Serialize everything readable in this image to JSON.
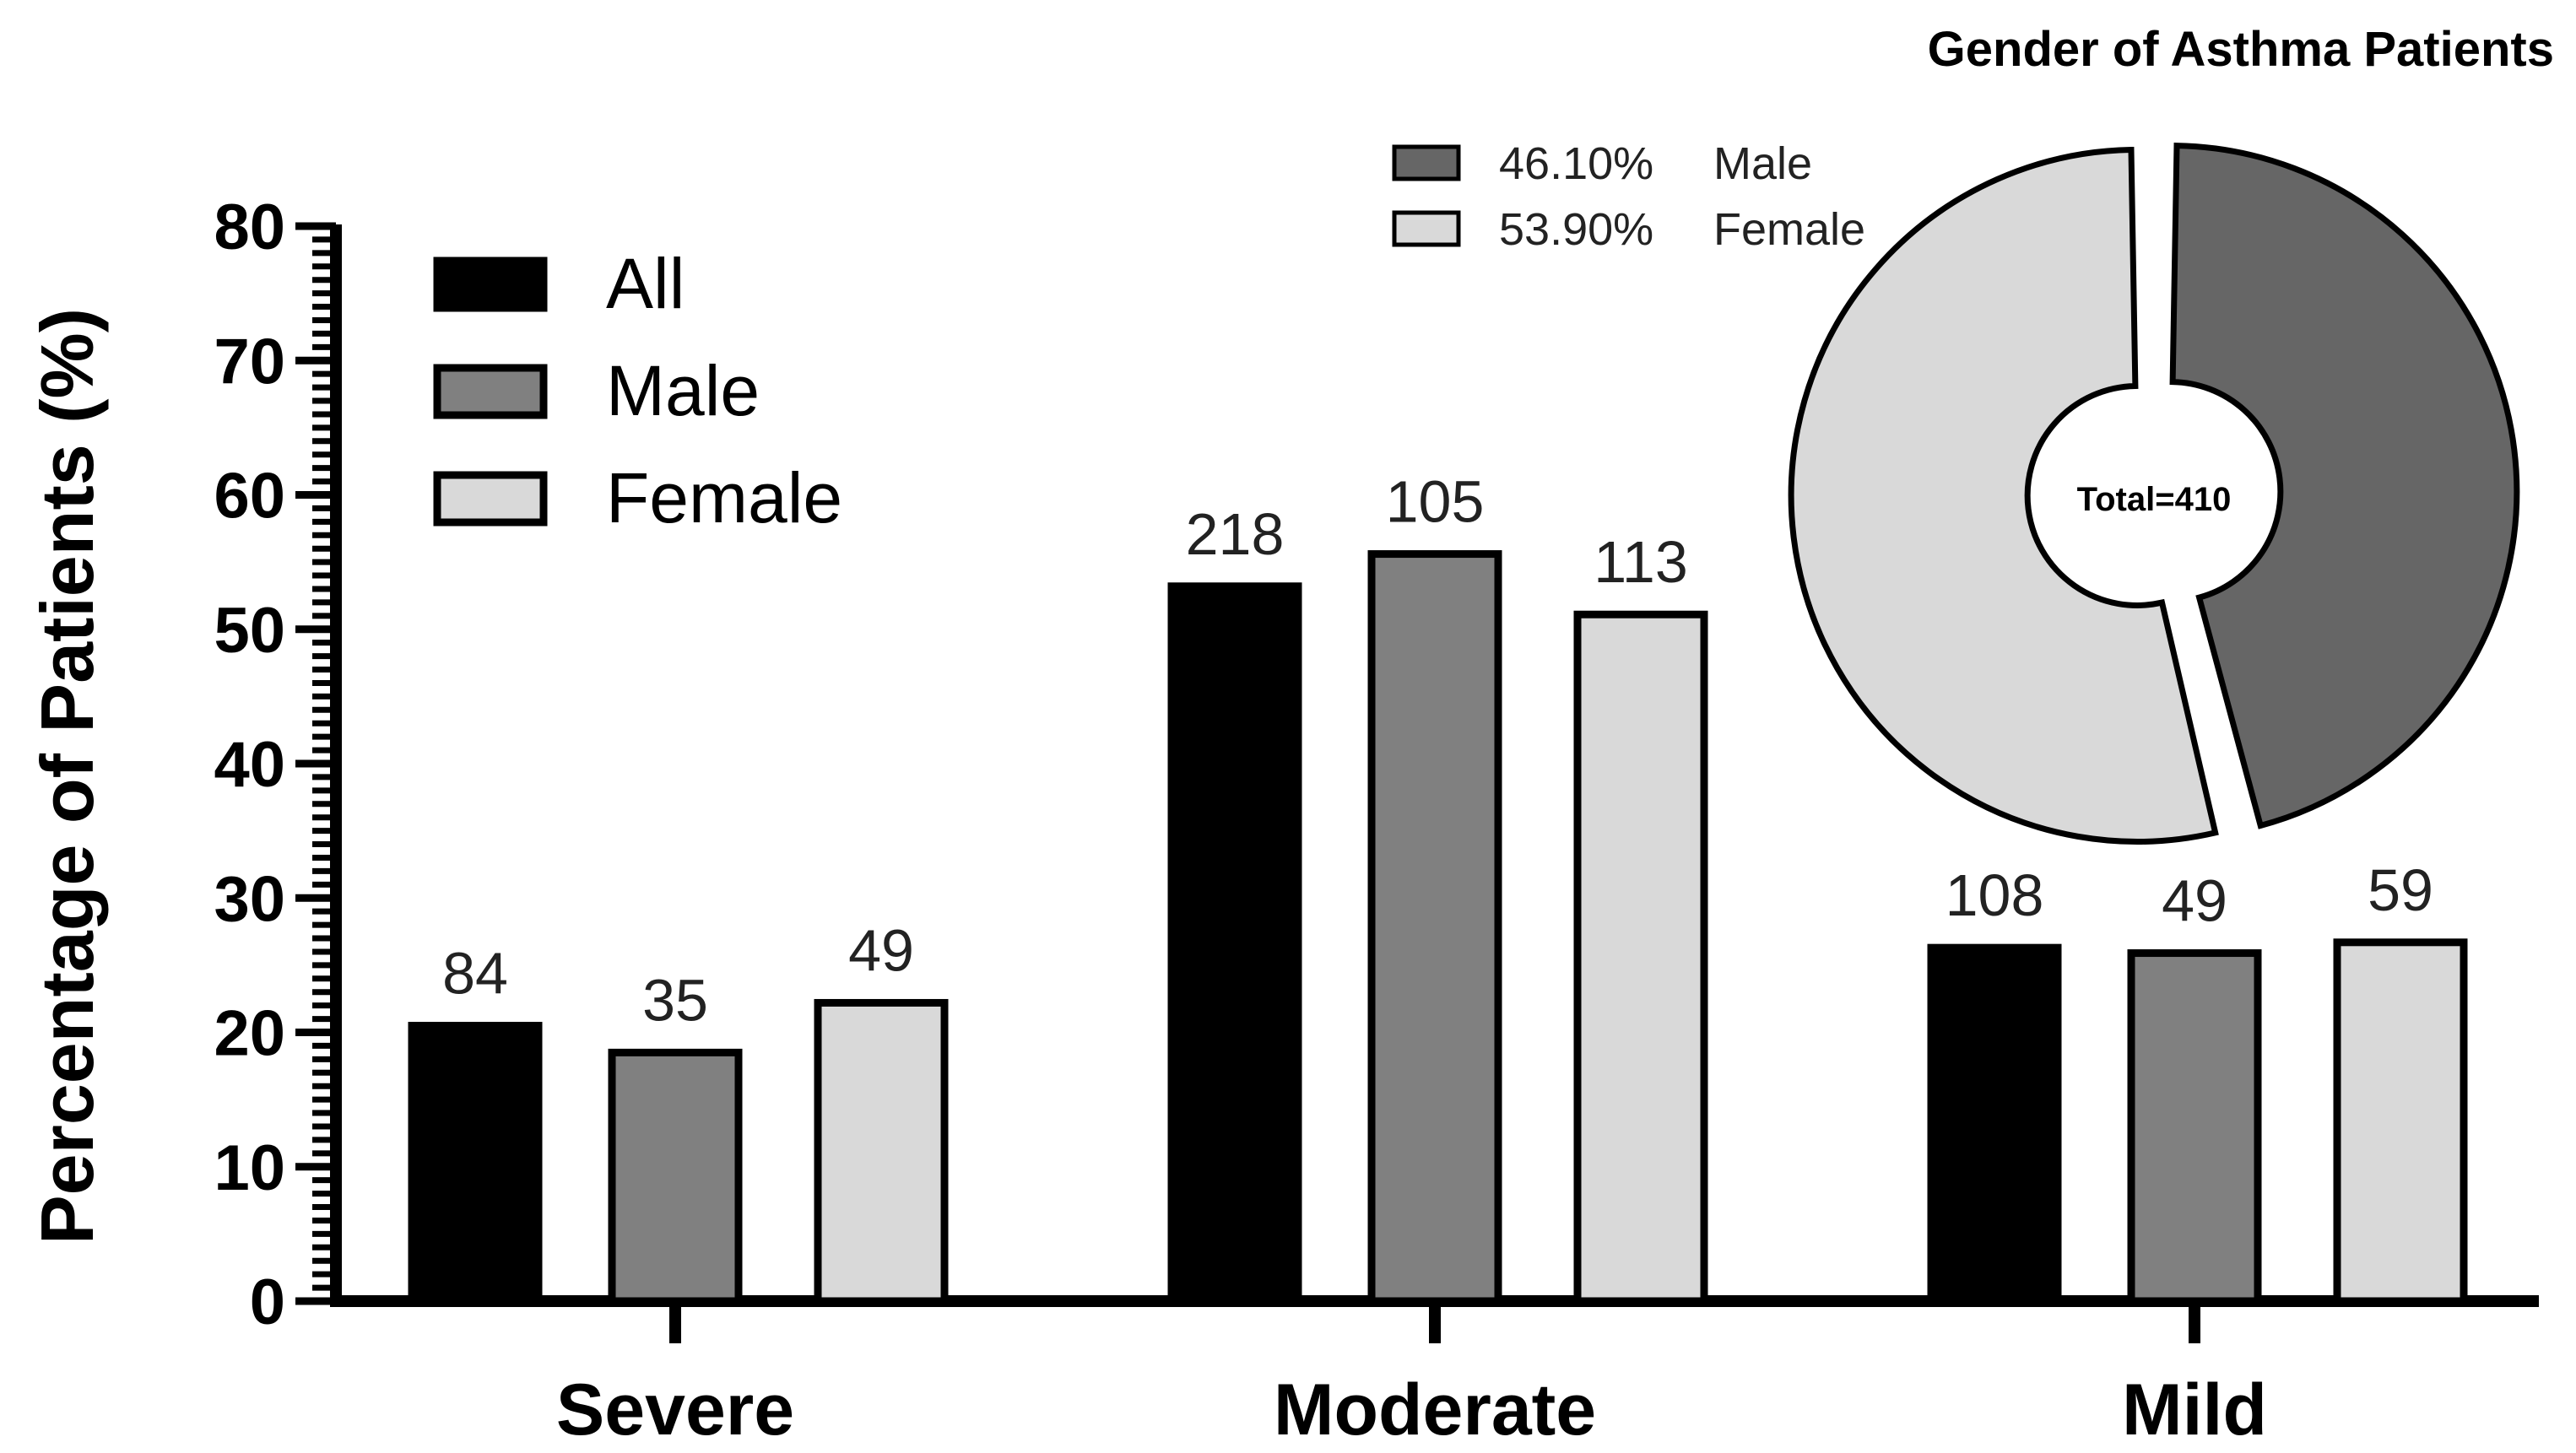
{
  "chart_data": [
    {
      "type": "bar",
      "ylabel": "Percentage of Patients (%)",
      "xlabel": "",
      "ylim": [
        0,
        80
      ],
      "yticks": [
        "0",
        "10",
        "20",
        "30",
        "40",
        "50",
        "60",
        "70",
        "80"
      ],
      "categories": [
        "Severe",
        "Moderate",
        "Mild"
      ],
      "series": [
        {
          "name": "All",
          "color": "#000000",
          "values": [
            20.5,
            53.2,
            26.3
          ],
          "labels": [
            "84",
            "218",
            "108"
          ]
        },
        {
          "name": "Male",
          "color": "#808080",
          "values": [
            18.5,
            55.6,
            25.9
          ],
          "labels": [
            "35",
            "105",
            "49"
          ]
        },
        {
          "name": "Female",
          "color": "#d9d9d9",
          "values": [
            22.2,
            51.1,
            26.7
          ],
          "labels": [
            "49",
            "113",
            "59"
          ]
        }
      ],
      "legend_position": "top-left",
      "grid": false
    },
    {
      "type": "pie",
      "title": "Gender of Asthma Patients",
      "center_label": "Total=410",
      "slices": [
        {
          "label": "Male",
          "percent_label": "46.10%",
          "value": 46.1,
          "color": "#666666"
        },
        {
          "label": "Female",
          "percent_label": "53.90%",
          "value": 53.9,
          "color": "#d9d9d9"
        }
      ],
      "legend_position": "top-left"
    }
  ]
}
